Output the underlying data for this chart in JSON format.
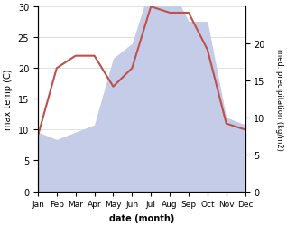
{
  "months": [
    "Jan",
    "Feb",
    "Mar",
    "Apr",
    "May",
    "Jun",
    "Jul",
    "Aug",
    "Sep",
    "Oct",
    "Nov",
    "Dec"
  ],
  "temperature": [
    9,
    20,
    22,
    22,
    17,
    20,
    30,
    29,
    29,
    23,
    11,
    10
  ],
  "precipitation": [
    8,
    7,
    8,
    9,
    18,
    20,
    28,
    28,
    23,
    23,
    10,
    9
  ],
  "temp_color": "#c0504d",
  "precip_fill_color": "#c5cce8",
  "temp_ylim": [
    0,
    30
  ],
  "precip_ylim": [
    0,
    25
  ],
  "precip_yticks": [
    0,
    5,
    10,
    15,
    20
  ],
  "temp_yticks": [
    0,
    5,
    10,
    15,
    20,
    25,
    30
  ],
  "xlabel": "date (month)",
  "ylabel_left": "max temp (C)",
  "ylabel_right": "med. precipitation (kg/m2)",
  "figsize": [
    3.18,
    2.51
  ],
  "dpi": 100
}
